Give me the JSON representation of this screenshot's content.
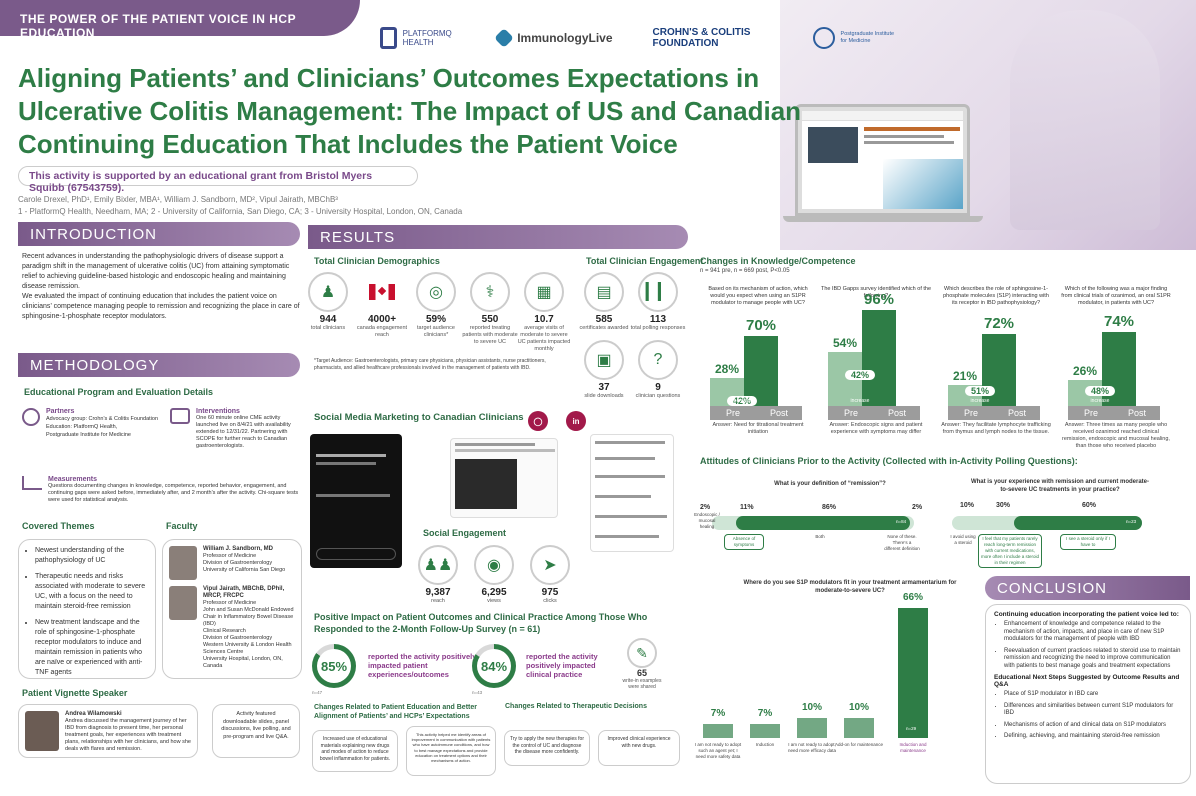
{
  "header": {
    "banner": "THE POWER OF THE PATIENT VOICE IN HCP EDUCATION",
    "logos": [
      "PLATFORMQ HEALTH",
      "ImmunologyLive",
      "CROHN'S & COLITIS FOUNDATION",
      "Postgraduate Institute for Medicine"
    ],
    "title": "Aligning Patients’ and Clinicians’ Outcomes Expectations in Ulcerative Colitis Management: The Impact of US and Canadian Continuing Education That Includes the Patient Voice",
    "support": "This activity is supported by an educational grant from Bristol Myers Squibb (67543759).",
    "authors": "Carole Drexel, PhD¹, Emily Bixler, MBA¹, William J. Sandborn, MD², Vipul Jairath, MBChB³",
    "affiliations": "1 - PlatformQ Health, Needham, MA; 2 - University of California, San Diego, CA; 3 - University Hospital, London, ON, Canada"
  },
  "intro": {
    "heading": "INTRODUCTION",
    "p1": "Recent advances in understanding the pathophysiologic drivers of disease support a paradigm shift in the management of ulcerative colitis (UC) from attaining symptomatic relief to achieving guideline-based histologic and endoscopic healing and maintaining disease remission.",
    "p2": "We evaluated the impact of continuing education that includes the patient voice on clinicians’ competence managing people to remission and recognizing the place in care of sphingosine-1-phosphate receptor modulators."
  },
  "methodology": {
    "heading": "METHODOLOGY",
    "sub": "Educational Program and Evaluation Details",
    "partners_title": "Partners",
    "partners_text": "Advocacy group: Crohn's & Colitis Foundation\nEducation: PlatformQ Health,\nPostgraduate Institute for Medicine",
    "interventions_title": "Interventions",
    "interventions_text": "One 60 minute online CME activity launched live on 8/4/21 with availability extended to 12/31/22. Partnering with SCOPE for further reach to Canadian gastroenterologists.",
    "measure_title": "Measurements",
    "measure_text": "Questions documenting changes in knowledge, competence, reported behavior, engagement, and continuing gaps were asked before, immediately after, and 2 month's after the activity. Chi-square tests were used for statistical analysis.",
    "themes_title": "Covered Themes",
    "themes": [
      "Newest understanding of the pathophysiology of UC",
      "Therapeutic needs and risks associated with moderate to severe UC, with a focus on the need to maintain steroid-free remission",
      "New treatment landscape and the role of sphingosine-1-phosphate receptor modulators to induce and maintain remission in patients who are naïve or experienced with anti-TNF agents"
    ],
    "faculty_title": "Faculty",
    "faculty": [
      {
        "name": "William J. Sandborn, MD",
        "details": "Professor of Medicine\nDivision of Gastroenterology\nUniversity of California San Diego"
      },
      {
        "name": "Vipul Jairath, MBChB, DPhil, MRCP, FRCPC",
        "details": "Professor of Medicine\nJohn and Susan McDonald Endowed Chair in Inflammatory Bowel Disease (IBD)\nClinical Research\nDivision of Gastroenterology\nWestern University & London Health Sciences Centre\nUniversity Hospital, London, ON, Canada"
      }
    ],
    "vignette_title": "Patient Vignette Speaker",
    "vignette_name": "Andrea Wilamowski",
    "vignette_text": "Andrea discussed the management journey of her IBD from diagnosis to present time, her personal treatment goals, her experiences with treatment plans, relationships with her clinicians, and how she deals with flares and remission.",
    "featured": "Activity featured downloadable slides, panel discussions, live polling, and pre-program and live Q&A."
  },
  "results": {
    "heading": "RESULTS",
    "demo_title": "Total Clinician Demographics",
    "demographics": [
      {
        "num": "944",
        "label": "total clinicians",
        "icon": "person-icon"
      },
      {
        "num": "4000+",
        "label": "canada engagement reach",
        "icon": "canada-flag-icon"
      },
      {
        "num": "59%",
        "label": "target audience clinicians*",
        "icon": "target-icon"
      },
      {
        "num": "550",
        "label": "reported treating patients with moderate to severe UC",
        "icon": "doctor-icon"
      },
      {
        "num": "10.7",
        "label": "average visits of moderate to severe UC patients impacted monthly",
        "icon": "calendar-icon"
      }
    ],
    "engage_title": "Total Clinician Engagement",
    "engagement": [
      {
        "num": "585",
        "label": "certificates awarded",
        "icon": "certificate-icon"
      },
      {
        "num": "113",
        "label": "total polling responses",
        "icon": "bar-chart-icon"
      },
      {
        "num": "37",
        "label": "slide downloads",
        "icon": "slides-icon"
      },
      {
        "num": "9",
        "label": "clinician questions",
        "icon": "question-icon"
      }
    ],
    "target_note": "*Target Audience: Gastroenterologists, primary care physicians, physician assistants, nurse practitioners, pharmacists, and allied healthcare professionals involved in the management of patients with IBD.",
    "social_title": "Social Media Marketing to Canadian Clinicians",
    "social_eng_title": "Social Engagement",
    "social": [
      {
        "num": "9,387",
        "label": "reach",
        "icon": "people-icon"
      },
      {
        "num": "6,295",
        "label": "views",
        "icon": "eye-icon"
      },
      {
        "num": "975",
        "label": "clicks",
        "icon": "cursor-icon"
      }
    ],
    "positive_title": "Positive Impact on Patient Outcomes and Clinical Practice Among Those Who Responded to the 2-Month Follow-Up Survey (n = 61)",
    "positive": [
      {
        "pct": "85%",
        "value": 85,
        "label": "reported the activity positively impacted patient experiences/outcomes",
        "n": "n=47"
      },
      {
        "pct": "84%",
        "value": 84,
        "label": "reported the activity positively impacted clinical practice",
        "n": "n=43"
      }
    ],
    "write_in_num": "65",
    "write_in_label": "write-in examples were shared",
    "changes_pat_title": "Changes Related to Patient Education and Better Alignment of Patients’ and HCPs’ Expectations",
    "changes_ther_title": "Changes Related to Therapeutic Decisions",
    "changes": [
      "Increased use of educational materials explaining new drugs and modes of action to reduce bowel inflammation for patients.",
      "This activity helped me identify areas of improvement in communication with patients who have autoimmune conditions, and how to best manage expectations and provide education on treatment options and their mechanisms of action.",
      "Try to apply the new therapies for the control of UC and diagnose the disease more confidently.",
      "Improved clinical experience with new drugs."
    ]
  },
  "knowledge": {
    "title": "Changes in Knowledge/Competence",
    "n": "n = 941 pre, n = 669 post, P<0.05",
    "increase_label": "increase",
    "pre_label": "Pre",
    "post_label": "Post",
    "items": [
      {
        "q": "Based on its mechanism of action, which would you expect when using an S1PR modulator to manage people with UC?",
        "pre": 28,
        "post": 70,
        "inc": 42,
        "pre_label": "28%",
        "post_label": "70%",
        "inc_label": "42%",
        "answer": "Answer: Need for titrational treatment initiation"
      },
      {
        "q": "The IBD Gapps survey identified which of the following?",
        "pre": 54,
        "post": 96,
        "inc": 42,
        "pre_label": "54%",
        "post_label": "96%",
        "inc_label": "42%",
        "answer": "Answer: Endoscopic signs and patient experience with symptoms may differ"
      },
      {
        "q": "Which describes the role of sphingosine-1-phosphate molecules (S1P) interacting with its receptor in IBD pathophysiology?",
        "pre": 21,
        "post": 72,
        "inc": 51,
        "pre_label": "21%",
        "post_label": "72%",
        "inc_label": "51%",
        "answer": "Answer: They facilitate lymphocyte trafficking from thymus and lymph nodes to the tissue."
      },
      {
        "q": "Which of the following was a major finding from clinical trials of ozanimod, an oral S1PR modulator, in patients with UC?",
        "pre": 26,
        "post": 74,
        "inc": 48,
        "pre_label": "26%",
        "post_label": "74%",
        "inc_label": "48%",
        "answer": "Answer: Three times as many people who received ozanimod reached clinical remission, endoscopic and mucosal healing, than those who received placebo"
      }
    ]
  },
  "attitudes": {
    "title": "Attitudes of Clinicians Prior to the Activity (Collected with in-Activity Polling Questions):",
    "q1": "What is your definition of “remission”?",
    "q1_n": "n=84",
    "q1_items": [
      {
        "pct": "2%",
        "label": "Endoscopic / mucosal healing"
      },
      {
        "pct": "11%",
        "label": "Absence of symptoms"
      },
      {
        "pct": "86%",
        "label": "Both"
      },
      {
        "pct": "2%",
        "label": "None of these. There’s a different definition"
      }
    ],
    "q2": "What is your experience with remission and current moderate-to-severe UC treatments in your practice?",
    "q2_n": "n=23",
    "q2_items": [
      {
        "pct": "10%",
        "label": "I avoid using a steroid"
      },
      {
        "pct": "30%",
        "label": "I feel that my patients rarely reach long-term remission with current medications, more often I include a steroid in their regimen"
      },
      {
        "pct": "60%",
        "label": "I see a steroid only if I have to"
      }
    ],
    "q3": "Where do you see S1P modulators fit in your treatment armamentarium for moderate-to-severe UC?",
    "q3_n": "n=29",
    "q3_items": [
      {
        "value": 7,
        "pct": "7%",
        "label": "I am not ready to adopt such an agent yet; I need more safety data"
      },
      {
        "value": 7,
        "pct": "7%",
        "label": "Induction"
      },
      {
        "value": 10,
        "pct": "10%",
        "label": "I am not ready to adopt; need more efficacy data"
      },
      {
        "value": 10,
        "pct": "10%",
        "label": "Add-on for maintenance"
      },
      {
        "value": 66,
        "pct": "66%",
        "label": "Induction and maintenance"
      }
    ]
  },
  "conclusion": {
    "heading": "CONCLUSION",
    "lead": "Continuing education incorporating the patient voice led to:",
    "items": [
      "Enhancement of knowledge and competence related to the mechanism of action, impacts, and place in care of new S1P modulators for the management of people with IBD",
      "Reevaluation of current practices related to steroid use to maintain remission and recognizing the need to improve communication with patients to best manage goals and treatment expectations"
    ],
    "next_title": "Educational Next Steps Suggested by Outcome Results and Q&A",
    "next_items": [
      "Place of S1P modulator in IBD care",
      "Differences and similarities between current S1P modulators for IBD",
      "Mechanisms of action of and clinical data on S1P modulators",
      "Defining, achieving, and maintaining steroid-free remission"
    ]
  },
  "colors": {
    "purple": "#7a5a8a",
    "green": "#2e7d46",
    "light_green": "#9bc7a6"
  }
}
